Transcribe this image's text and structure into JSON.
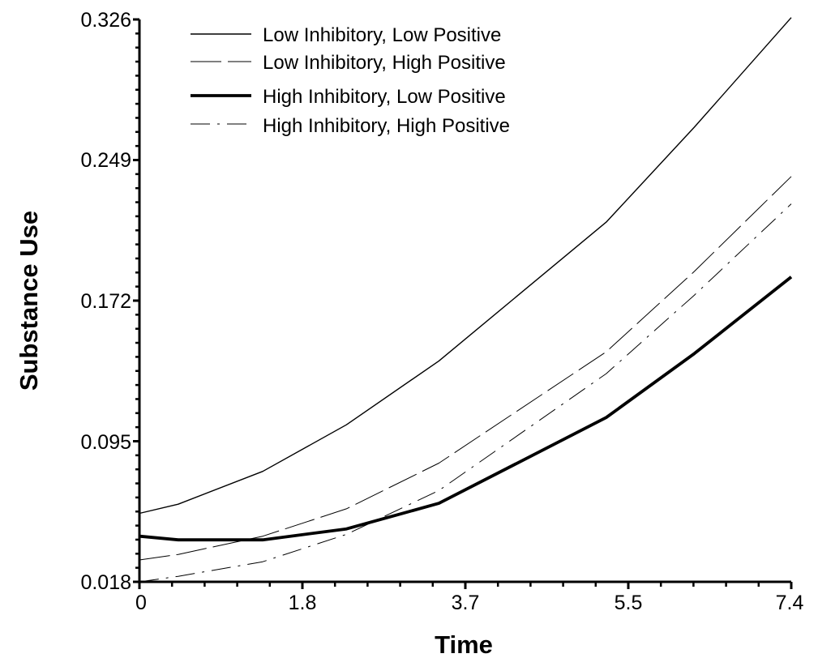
{
  "chart_data": {
    "type": "line",
    "title": "",
    "xlabel": "Time",
    "ylabel": "Substance Use",
    "xlim": [
      0,
      7.4
    ],
    "ylim": [
      0.018,
      0.326
    ],
    "x_ticks": [
      "0",
      "1.8",
      "3.7",
      "5.5",
      "7.4"
    ],
    "x_tick_values": [
      0,
      1.85,
      3.7,
      5.55,
      7.4
    ],
    "y_ticks": [
      "0.018",
      "0.095",
      "0.172",
      "0.249",
      "0.326"
    ],
    "y_tick_values": [
      0.018,
      0.095,
      0.172,
      0.249,
      0.326
    ],
    "grid": false,
    "legend_position": "top-left",
    "series": [
      {
        "name": "Low Inhibitory, Low Positive",
        "style": "solid-thin",
        "x": [
          0,
          0.44,
          1.4,
          2.35,
          3.4,
          5.3,
          6.3,
          7.4
        ],
        "y": [
          0.0555,
          0.0605,
          0.0785,
          0.104,
          0.139,
          0.215,
          0.267,
          0.327
        ]
      },
      {
        "name": "Low Inhibitory, High Positive",
        "style": "long-dash-thin",
        "x": [
          0,
          0.44,
          1.4,
          2.35,
          3.4,
          5.3,
          6.3,
          7.4
        ],
        "y": [
          0.03,
          0.033,
          0.043,
          0.058,
          0.083,
          0.144,
          0.188,
          0.24
        ]
      },
      {
        "name": "High Inhibitory, Low Positive",
        "style": "solid-thick",
        "x": [
          0,
          0.44,
          1.4,
          2.35,
          3.4,
          5.3,
          6.3,
          7.4
        ],
        "y": [
          0.043,
          0.041,
          0.041,
          0.047,
          0.061,
          0.108,
          0.143,
          0.185
        ]
      },
      {
        "name": "High Inhibitory, High Positive",
        "style": "dash-dot-thin",
        "x": [
          0,
          0.44,
          1.4,
          2.35,
          3.4,
          5.3,
          6.3,
          7.4
        ],
        "y": [
          0.018,
          0.021,
          0.029,
          0.044,
          0.068,
          0.132,
          0.175,
          0.225
        ]
      }
    ]
  }
}
